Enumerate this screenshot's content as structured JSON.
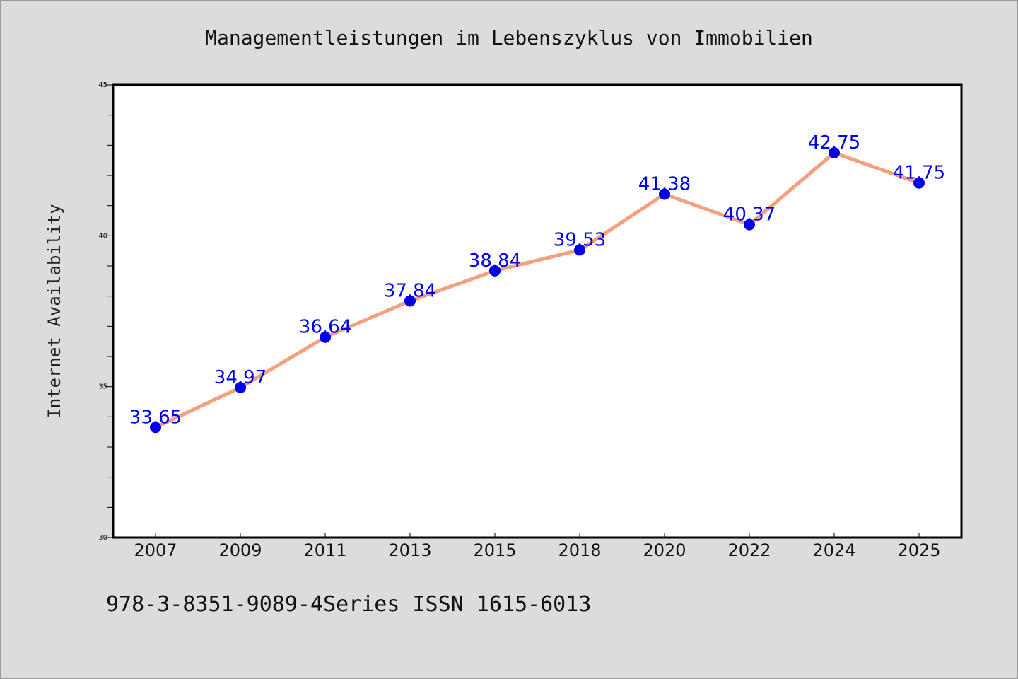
{
  "colors": {
    "background": "#dcdcdc",
    "plot_background": "#ffffff",
    "line": "#f4a07e",
    "marker": "#0000ee",
    "data_label": "#0000ee"
  },
  "footer": {
    "text": "978-3-8351-9089-4Series ISSN 1615-6013"
  },
  "chart_data": {
    "type": "line",
    "title": "Managementleistungen im Lebenszyklus von Immobilien",
    "xlabel": "",
    "ylabel": "Internet Availability",
    "categories": [
      "2007",
      "2009",
      "2011",
      "2013",
      "2015",
      "2018",
      "2020",
      "2022",
      "2024",
      "2025"
    ],
    "series": [
      {
        "values": [
          33.65,
          34.97,
          36.64,
          37.84,
          38.84,
          39.53,
          41.38,
          40.37,
          42.75,
          41.75
        ],
        "labels": [
          "33.65",
          "34.97",
          "36.64",
          "37.84",
          "38.84",
          "39.53",
          "41.38",
          "40.37",
          "42.75",
          "41.75"
        ]
      }
    ],
    "ylim": [
      30,
      45
    ],
    "yticks": [
      30,
      35,
      40,
      45
    ],
    "yminor_step": 1,
    "grid": false,
    "legend": "none"
  }
}
